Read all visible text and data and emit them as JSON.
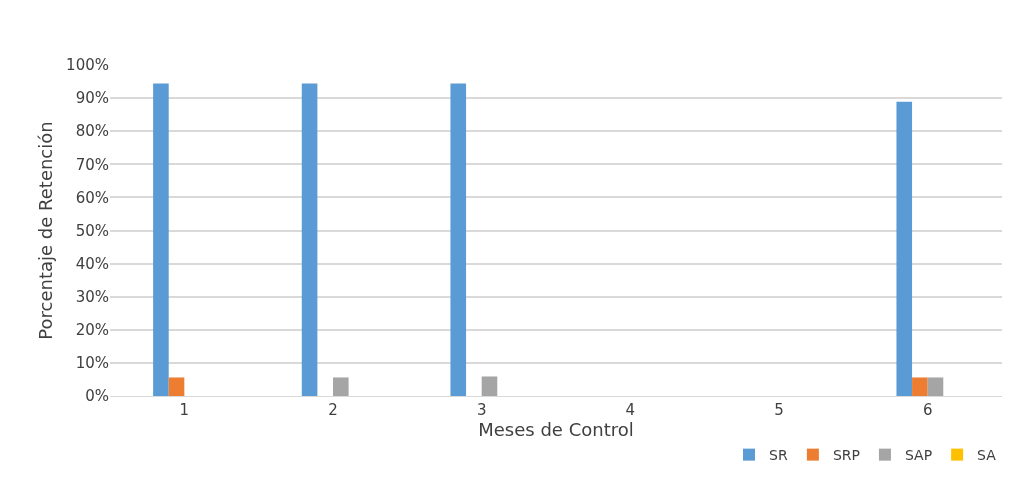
{
  "chart_data": {
    "type": "bar",
    "xlabel": "Meses de Control",
    "ylabel": "Porcentaje de Retención",
    "categories": [
      "1",
      "2",
      "3",
      "4",
      "5",
      "6"
    ],
    "series": [
      {
        "name": "SR",
        "color": "#5b9bd5",
        "values": [
          94.4,
          94.4,
          94.4,
          0,
          0,
          88.9
        ]
      },
      {
        "name": "SRP",
        "color": "#ed7d31",
        "values": [
          5.6,
          0,
          0,
          0,
          0,
          5.6
        ]
      },
      {
        "name": "SAP",
        "color": "#a5a5a5",
        "values": [
          0,
          5.6,
          5.9,
          0,
          0,
          5.6
        ]
      },
      {
        "name": "SA",
        "color": "#ffc000",
        "values": [
          0,
          0,
          0,
          0,
          0,
          0
        ]
      }
    ],
    "ylim": [
      0,
      100
    ],
    "yticks": [
      {
        "value": 0,
        "label": "0%"
      },
      {
        "value": 10,
        "label": "10%"
      },
      {
        "value": 20,
        "label": "20%"
      },
      {
        "value": 30,
        "label": "30%"
      },
      {
        "value": 40,
        "label": "40%"
      },
      {
        "value": 50,
        "label": "50%"
      },
      {
        "value": 60,
        "label": "60%"
      },
      {
        "value": 70,
        "label": "70%"
      },
      {
        "value": 80,
        "label": "80%"
      },
      {
        "value": 90,
        "label": "90%"
      },
      {
        "value": 100,
        "label": "100%"
      }
    ],
    "grid": "y",
    "legend": "bottom right"
  }
}
